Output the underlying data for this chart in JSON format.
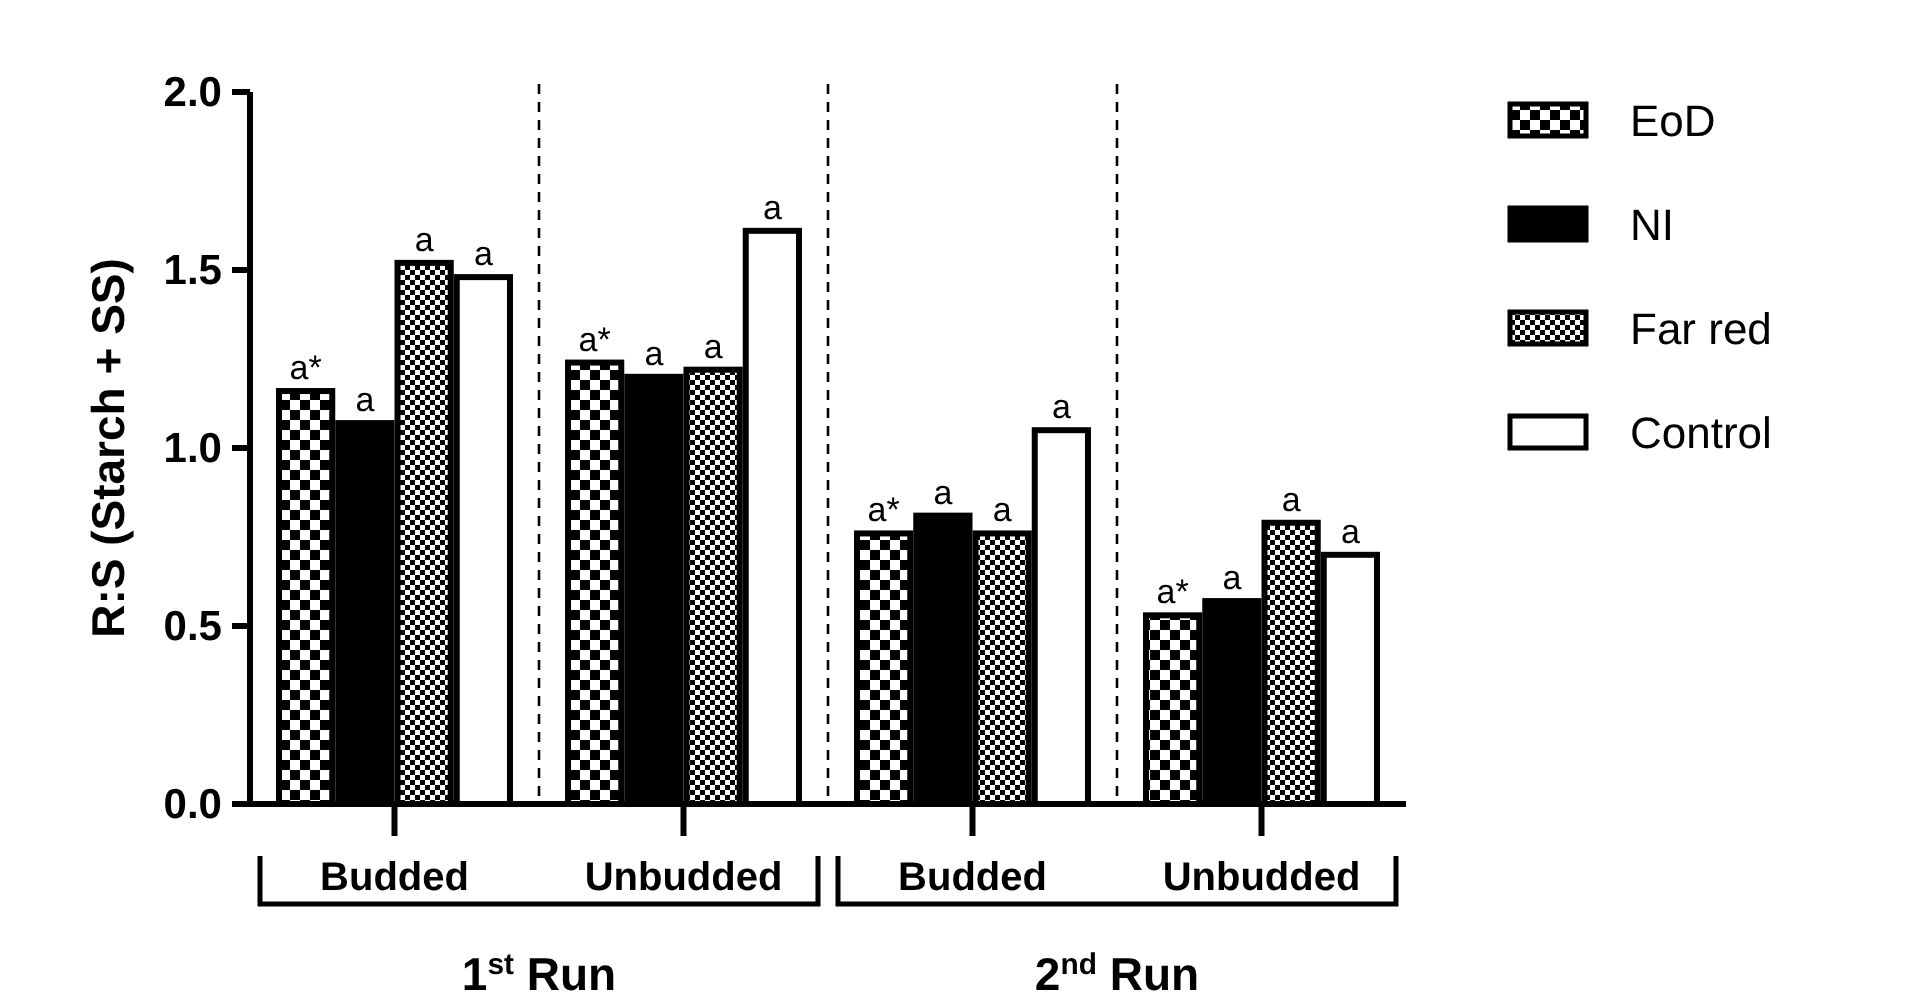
{
  "chart_data": {
    "type": "bar",
    "ylabel": "R:S (Starch + SS)",
    "categories": [
      "Budded",
      "Unbudded",
      "Budded",
      "Unbudded"
    ],
    "series": [
      {
        "name": "EoD",
        "color": "#000000",
        "values": [
          1.16,
          1.24,
          0.76,
          0.53
        ],
        "value_labels": [
          "a*",
          "a*",
          "a*",
          "a*"
        ]
      },
      {
        "name": "NI",
        "color": "#000000",
        "values": [
          1.07,
          1.2,
          0.81,
          0.57
        ],
        "value_labels": [
          "a",
          "a",
          "a",
          "a"
        ]
      },
      {
        "name": "Far red",
        "color": "#000000",
        "values": [
          1.52,
          1.22,
          0.76,
          0.79
        ],
        "value_labels": [
          "a",
          "a",
          "a",
          "a"
        ]
      },
      {
        "name": "Control",
        "color": "#ffffff",
        "values": [
          1.48,
          1.61,
          1.05,
          0.7
        ],
        "value_labels": [
          "a",
          "a",
          "a",
          "a"
        ]
      }
    ],
    "ylim": [
      0,
      2
    ],
    "yticks": [
      {
        "value": 0,
        "label": "0.0"
      },
      {
        "value": 0.5,
        "label": "0.5"
      },
      {
        "value": 1,
        "label": "1.0"
      },
      {
        "value": 1.5,
        "label": "1.5"
      },
      {
        "value": 2,
        "label": "2.0"
      }
    ],
    "annotations": [
      "1$^{st}$ Run",
      "2$^{nd}$ Run"
    ],
    "legend": "right",
    "grid": false
  }
}
